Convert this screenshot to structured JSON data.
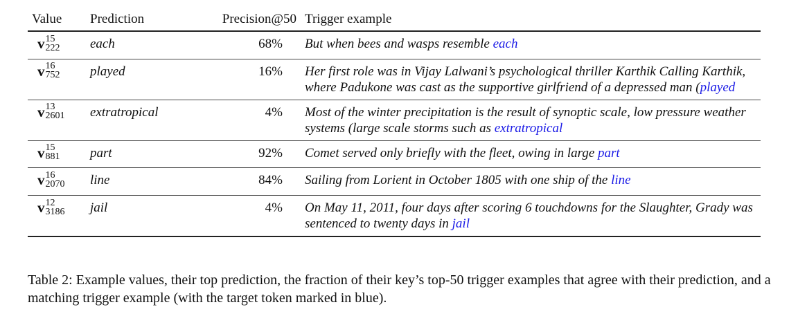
{
  "table": {
    "headers": {
      "value": "Value",
      "prediction": "Prediction",
      "precision": "Precision@50",
      "trigger": "Trigger example"
    },
    "rows": [
      {
        "symbol": "v",
        "sup": "15",
        "sub": "222",
        "prediction": "each",
        "precision": "68%",
        "trigger_text": "But when bees and wasps resemble ",
        "target": "each"
      },
      {
        "symbol": "v",
        "sup": "16",
        "sub": "752",
        "prediction": "played",
        "precision": "16%",
        "trigger_text": "Her first role was in Vijay Lalwani’s psychological thriller Karthik Calling Karthik, where Padukone was cast as the supportive girlfriend of a depressed man (",
        "target": "played"
      },
      {
        "symbol": "v",
        "sup": "13",
        "sub": "2601",
        "prediction": "extratropical",
        "precision": "4%",
        "trigger_text": "Most of the winter precipitation is the result of synoptic scale, low pressure weather systems (large scale storms such as ",
        "target": "extratropical"
      },
      {
        "symbol": "v",
        "sup": "15",
        "sub": "881",
        "prediction": "part",
        "precision": "92%",
        "trigger_text": "Comet served only briefly with the fleet, owing in large ",
        "target": "part"
      },
      {
        "symbol": "v",
        "sup": "16",
        "sub": "2070",
        "prediction": "line",
        "precision": "84%",
        "trigger_text": "Sailing from Lorient in October 1805 with one ship of the ",
        "target": "line"
      },
      {
        "symbol": "v",
        "sup": "12",
        "sub": "3186",
        "prediction": "jail",
        "precision": "4%",
        "trigger_text": "On May 11, 2011, four days after scoring 6 touchdowns for the Slaughter, Grady was sentenced to twenty days in ",
        "target": "jail"
      }
    ]
  },
  "caption": "Table 2: Example values, their top prediction, the fraction of their key’s top-50 trigger examples that agree with their prediction, and a matching trigger example (with the target token marked in blue).",
  "colors": {
    "target_token": "#1a1ae6",
    "text": "#111111"
  }
}
